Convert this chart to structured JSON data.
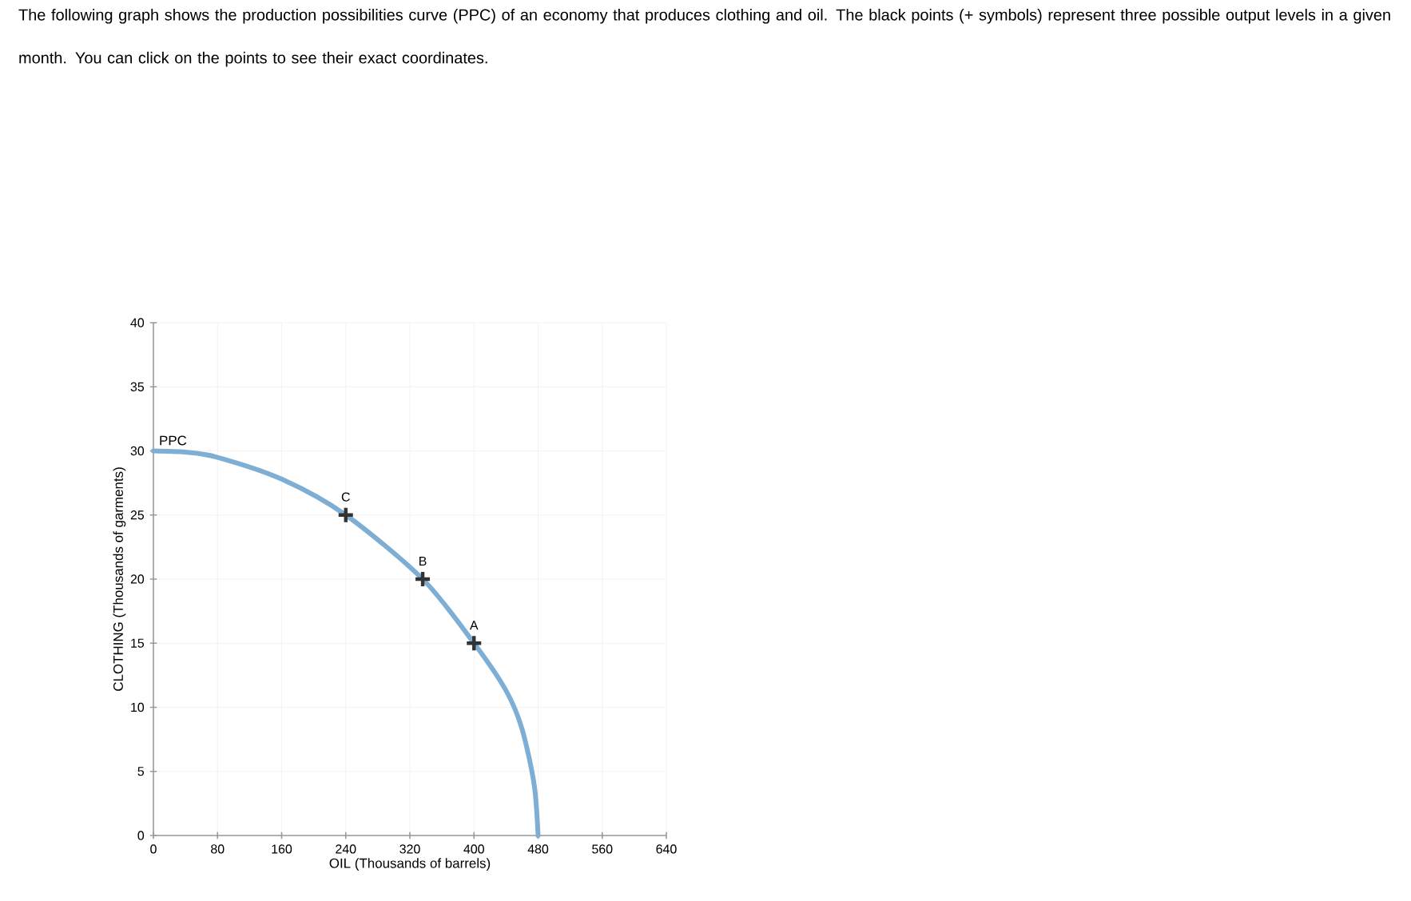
{
  "chart_data": {
    "type": "line",
    "title": "The following graph shows the production possibilities curve (PPC) of an economy that produces clothing and oil. The black points (+ symbols) represent three possible output levels in a given month. You can click on the points to see their exact coordinates.",
    "xlabel": "OIL (Thousands of barrels)",
    "ylabel": "CLOTHING (Thousands of garments)",
    "xlim": [
      0,
      640
    ],
    "ylim": [
      0,
      40
    ],
    "xticks": [
      0,
      80,
      160,
      240,
      320,
      400,
      480,
      560,
      640
    ],
    "yticks": [
      0,
      5,
      10,
      15,
      20,
      25,
      30,
      35,
      40
    ],
    "grid": true,
    "series": [
      {
        "name": "PPC",
        "color": "#7eaed3",
        "marker": "none",
        "x": [
          0,
          40,
          80,
          160,
          240,
          336,
          400,
          440,
          460,
          475,
          480
        ],
        "values": [
          30,
          29.9,
          29.5,
          27.8,
          25,
          20,
          15,
          11.3,
          8.3,
          4,
          0
        ]
      },
      {
        "type": "scatter",
        "color": "#333333",
        "marker": "cross",
        "x": [
          400,
          336,
          240
        ],
        "values": [
          15,
          20,
          25
        ]
      }
    ],
    "annotations": [
      {
        "text": "A",
        "x": 400,
        "y": 15
      },
      {
        "text": "B",
        "x": 336,
        "y": 20
      },
      {
        "text": "C",
        "x": 240,
        "y": 25
      }
    ]
  }
}
